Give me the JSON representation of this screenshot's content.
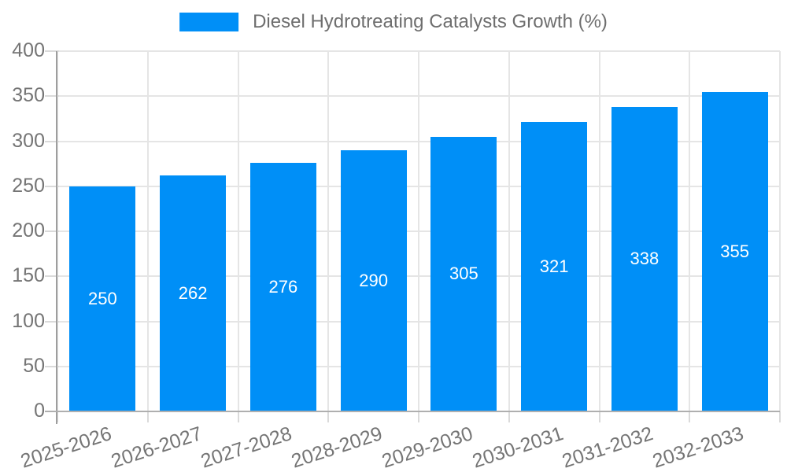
{
  "chart_data": {
    "type": "bar",
    "title": "Diesel Hydrotreating Catalysts Growth (%)",
    "legend": {
      "label": "Diesel Hydrotreating Catalysts Growth (%)",
      "position": "top-center"
    },
    "categories": [
      "2025-2026",
      "2026-2027",
      "2027-2028",
      "2028-2029",
      "2029-2030",
      "2030-2031",
      "2031-2032",
      "2032-2033"
    ],
    "values": [
      250,
      262,
      276,
      290,
      305,
      321,
      338,
      355
    ],
    "xlabel": "",
    "ylabel": "",
    "ylim": [
      0,
      400
    ],
    "ytick_step": 50,
    "yticks": [
      0,
      50,
      100,
      150,
      200,
      250,
      300,
      350,
      400
    ],
    "grid": true,
    "bar_labels_shown": true,
    "x_label_rotation_deg": -18,
    "colors": {
      "bar": "#008FF7",
      "bar_label": "#FFFFFF",
      "legend_text": "#6E6E6E",
      "axis_label": "#757575",
      "grid_line": "#E5E5E5",
      "y_axis_line": "#9E9E9E",
      "x_axis_line": "#AFAFAF",
      "tick": "#DADADA",
      "background": "#FFFFFF"
    }
  }
}
